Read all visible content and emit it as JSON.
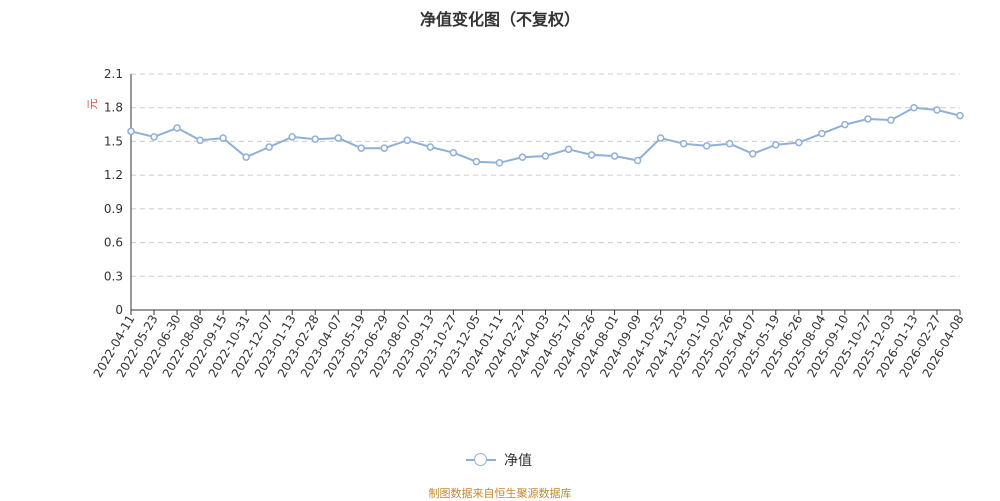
{
  "title": "净值变化图（不复权）",
  "source": "制图数据来自恒生聚源数据库",
  "legend_label": "净值",
  "colors": {
    "line": "#8fb0d8",
    "ylabel": "#e04545",
    "source": "#c08a2e",
    "grid": "#cccccc"
  },
  "chart_data": {
    "type": "line",
    "title": "净值变化图（不复权）",
    "xlabel": "",
    "ylabel": "元",
    "ylim": [
      0,
      2.1
    ],
    "yticks": [
      "0",
      "0.3",
      "0.6",
      "0.9",
      "1.2",
      "1.5",
      "1.8",
      "2.1"
    ],
    "grid": "horizontal dashed",
    "legend_position": "bottom-center",
    "xtick_labels": [
      "2022-04-11",
      "2022-05-23",
      "2022-06-30",
      "2022-08-08",
      "2022-09-15",
      "2022-10-31",
      "2022-12-07",
      "2023-01-13",
      "2023-02-28",
      "2023-04-07",
      "2023-05-19",
      "2023-06-29",
      "2023-08-07",
      "2023-09-13",
      "2023-10-27",
      "2023-12-05",
      "2024-01-11",
      "2024-02-27",
      "2024-04-03",
      "2024-05-17",
      "2024-06-26",
      "2024-08-01",
      "2024-09-09",
      "2024-10-25",
      "2024-12-03",
      "2025-01-10",
      "2025-02-26",
      "2025-04-07",
      "2025-05-19",
      "2025-06-26",
      "2025-08-04",
      "2025-09-10",
      "2025-10-27",
      "2025-12-03",
      "2026-01-13",
      "2026-02-27",
      "2026-04-08"
    ],
    "series": [
      {
        "name": "净值",
        "x": [
          "2022-04-11",
          "2022-05-23",
          "2022-06-30",
          "2022-08-08",
          "2022-09-15",
          "2022-10-31",
          "2022-12-07",
          "2023-01-13",
          "2023-02-28",
          "2023-04-07",
          "2023-05-19",
          "2023-06-29",
          "2023-08-07",
          "2023-09-13",
          "2023-10-27",
          "2023-12-05",
          "2024-01-11",
          "2024-02-27",
          "2024-04-03",
          "2024-05-17",
          "2024-06-26",
          "2024-08-01",
          "2024-09-09",
          "2024-10-25",
          "2024-12-03",
          "2025-01-10",
          "2025-02-26",
          "2025-04-07",
          "2025-05-19",
          "2025-06-26",
          "2025-08-04",
          "2025-09-10",
          "2025-10-27",
          "2025-12-03",
          "2026-01-13",
          "2026-02-27",
          "2026-04-08"
        ],
        "values": [
          1.59,
          1.54,
          1.62,
          1.51,
          1.53,
          1.36,
          1.45,
          1.54,
          1.52,
          1.53,
          1.44,
          1.44,
          1.51,
          1.45,
          1.4,
          1.32,
          1.31,
          1.36,
          1.37,
          1.43,
          1.38,
          1.37,
          1.33,
          1.53,
          1.48,
          1.46,
          1.48,
          1.39,
          1.47,
          1.49,
          1.57,
          1.65,
          1.7,
          1.69,
          1.8,
          1.78,
          1.73
        ]
      }
    ]
  }
}
